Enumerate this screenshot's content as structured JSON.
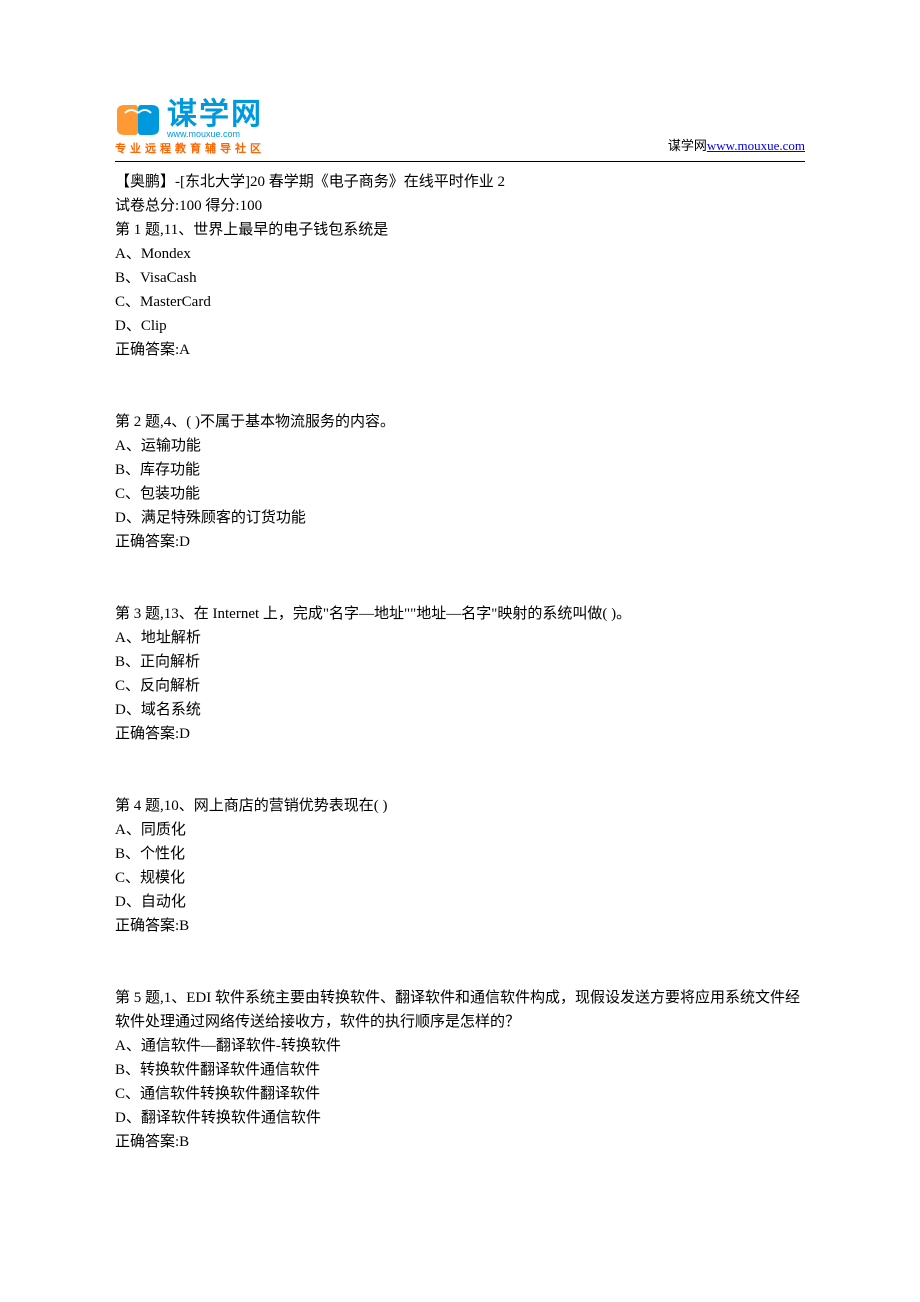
{
  "header": {
    "logo_main": "谋学网",
    "logo_url": "www.mouxue.com",
    "logo_tagline": "专业远程教育辅导社区",
    "right_prefix": "谋学网",
    "right_link": "www.mouxue.com"
  },
  "colors": {
    "logo_blue": "#0099dd",
    "logo_orange": "#ff6600",
    "link_blue": "#0000ee",
    "text_black": "#000000",
    "background": "#ffffff"
  },
  "title_line": "【奥鹏】-[东北大学]20 春学期《电子商务》在线平时作业 2",
  "score_line": "试卷总分:100     得分:100",
  "questions": [
    {
      "prompt": "第 1 题,11、世界上最早的电子钱包系统是",
      "options": [
        "A、Mondex",
        "B、VisaCash",
        "C、MasterCard",
        "D、Clip"
      ],
      "answer": "正确答案:A"
    },
    {
      "prompt": "第 2 题,4、( )不属于基本物流服务的内容。",
      "options": [
        "A、运输功能",
        "B、库存功能",
        "C、包装功能",
        "D、满足特殊顾客的订货功能"
      ],
      "answer": "正确答案:D"
    },
    {
      "prompt": "第 3 题,13、在 Internet 上，完成\"名字—地址\"\"地址—名字\"映射的系统叫做( )。",
      "options": [
        "A、地址解析",
        "B、正向解析",
        "C、反向解析",
        "D、域名系统"
      ],
      "answer": "正确答案:D"
    },
    {
      "prompt": "第 4 题,10、网上商店的营销优势表现在( )",
      "options": [
        "A、同质化",
        "B、个性化",
        "C、规模化",
        "D、自动化"
      ],
      "answer": "正确答案:B"
    },
    {
      "prompt": "第 5 题,1、EDI 软件系统主要由转换软件、翻译软件和通信软件构成，现假设发送方要将应用系统文件经软件处理通过网络传送给接收方，软件的执行顺序是怎样的？",
      "options": [
        "A、通信软件—翻译软件-转换软件",
        "B、转换软件翻译软件通信软件",
        "C、通信软件转换软件翻译软件",
        "D、翻译软件转换软件通信软件"
      ],
      "answer": "正确答案:B"
    }
  ]
}
